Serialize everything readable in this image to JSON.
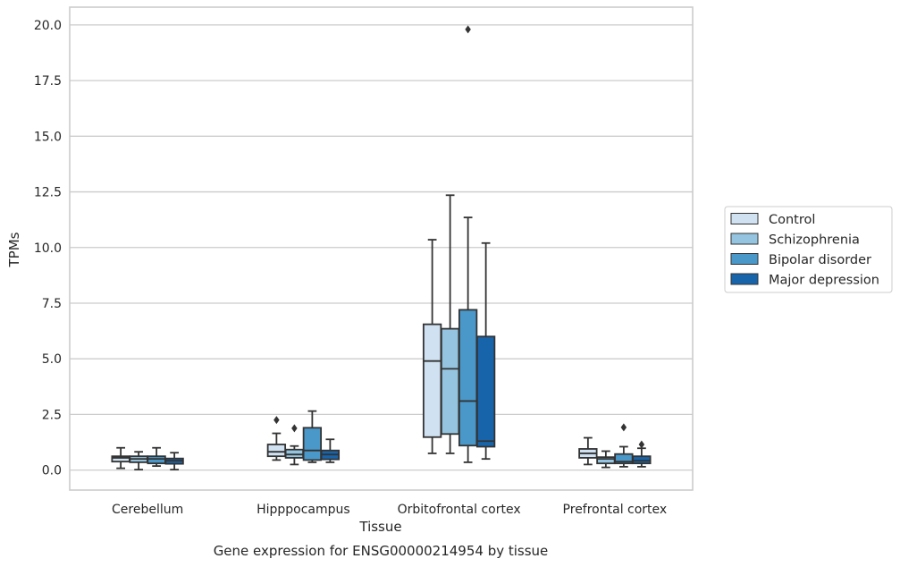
{
  "chart_data": {
    "type": "box",
    "title": "",
    "caption": "Gene expression for ENSG00000214954 by tissue",
    "xlabel": "Tissue",
    "ylabel": "TPMs",
    "ylim": [
      -0.9,
      20.8
    ],
    "yticks": [
      0.0,
      2.5,
      5.0,
      7.5,
      10.0,
      12.5,
      15.0,
      17.5,
      20.0
    ],
    "ytick_labels": [
      "0.0",
      "2.5",
      "5.0",
      "7.5",
      "10.0",
      "12.5",
      "15.0",
      "17.5",
      "20.0"
    ],
    "grid": true,
    "legend_position": "right (outside plot)",
    "categories": [
      "Cerebellum",
      "Hipppocampus",
      "Orbitofrontal cortex",
      "Prefrontal cortex"
    ],
    "series": [
      {
        "name": "Control",
        "color": "#d0e1f2",
        "boxes": [
          {
            "whislo": 0.08,
            "q1": 0.38,
            "med": 0.55,
            "q3": 0.62,
            "whishi": 1.0,
            "fliers": []
          },
          {
            "whislo": 0.45,
            "q1": 0.62,
            "med": 0.82,
            "q3": 1.15,
            "whishi": 1.65,
            "fliers": [
              2.25
            ]
          },
          {
            "whislo": 0.75,
            "q1": 1.48,
            "med": 4.9,
            "q3": 6.55,
            "whishi": 10.35,
            "fliers": []
          },
          {
            "whislo": 0.25,
            "q1": 0.55,
            "med": 0.75,
            "q3": 0.95,
            "whishi": 1.45,
            "fliers": []
          }
        ]
      },
      {
        "name": "Schizophrenia",
        "color": "#94c4df",
        "boxes": [
          {
            "whislo": 0.02,
            "q1": 0.35,
            "med": 0.5,
            "q3": 0.62,
            "whishi": 0.82,
            "fliers": []
          },
          {
            "whislo": 0.25,
            "q1": 0.55,
            "med": 0.7,
            "q3": 0.92,
            "whishi": 1.08,
            "fliers": [
              1.88
            ]
          },
          {
            "whislo": 0.75,
            "q1": 1.62,
            "med": 4.55,
            "q3": 6.35,
            "whishi": 12.35,
            "fliers": []
          },
          {
            "whislo": 0.12,
            "q1": 0.3,
            "med": 0.5,
            "q3": 0.58,
            "whishi": 0.85,
            "fliers": []
          }
        ]
      },
      {
        "name": "Bipolar disorder",
        "color": "#4a98c9",
        "boxes": [
          {
            "whislo": 0.18,
            "q1": 0.3,
            "med": 0.5,
            "q3": 0.62,
            "whishi": 1.0,
            "fliers": []
          },
          {
            "whislo": 0.35,
            "q1": 0.45,
            "med": 0.88,
            "q3": 1.9,
            "whishi": 2.65,
            "fliers": []
          },
          {
            "whislo": 0.35,
            "q1": 1.1,
            "med": 3.1,
            "q3": 7.2,
            "whishi": 11.35,
            "fliers": [
              19.8
            ]
          },
          {
            "whislo": 0.15,
            "q1": 0.3,
            "med": 0.38,
            "q3": 0.72,
            "whishi": 1.05,
            "fliers": [
              1.92
            ]
          }
        ]
      },
      {
        "name": "Major depression",
        "color": "#1764ab",
        "boxes": [
          {
            "whislo": 0.02,
            "q1": 0.28,
            "med": 0.42,
            "q3": 0.52,
            "whishi": 0.78,
            "fliers": []
          },
          {
            "whislo": 0.35,
            "q1": 0.48,
            "med": 0.7,
            "q3": 0.88,
            "whishi": 1.38,
            "fliers": []
          },
          {
            "whislo": 0.5,
            "q1": 1.05,
            "med": 1.3,
            "q3": 6.0,
            "whishi": 10.2,
            "fliers": []
          },
          {
            "whislo": 0.15,
            "q1": 0.3,
            "med": 0.42,
            "q3": 0.62,
            "whishi": 0.98,
            "fliers": [
              1.15
            ]
          }
        ]
      }
    ]
  }
}
